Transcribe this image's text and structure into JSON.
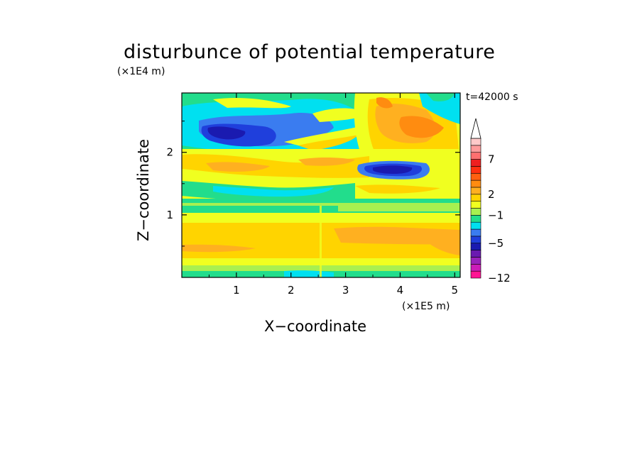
{
  "chart_data": {
    "type": "heatmap",
    "title": "disturbunce of potential temperature",
    "xlabel": "X−coordinate",
    "ylabel": "Z−coordinate",
    "x_unit": "(×1E5 m)",
    "y_unit": "(×1E4 m)",
    "time_label": "t=42000 s",
    "xlim": [
      0,
      5.1
    ],
    "ylim": [
      0,
      2.95
    ],
    "x_ticks": [
      1,
      2,
      3,
      4,
      5
    ],
    "y_ticks": [
      1,
      2
    ],
    "colorbar": {
      "levels": [
        -12,
        -10,
        -8,
        -7,
        -6,
        -5,
        -4,
        -3,
        -2,
        -1,
        0,
        1,
        2,
        3,
        4,
        5,
        6,
        7,
        8,
        9,
        10
      ],
      "colors": [
        "#ff1493",
        "#cc1cb8",
        "#9a22bb",
        "#6a1ab0",
        "#1a1ab0",
        "#1f3fdc",
        "#3a7cf0",
        "#00e0f0",
        "#22dd8c",
        "#a8f050",
        "#f0ff20",
        "#ffd400",
        "#ffb020",
        "#ff8c10",
        "#ff6010",
        "#ff3010",
        "#ee2020",
        "#ff6f6f",
        "#ff9c9c",
        "#ffcaca"
      ],
      "tick_labels": [
        {
          "value": 7,
          "label": "7"
        },
        {
          "value": 2,
          "label": "2"
        },
        {
          "value": -1,
          "label": "−1"
        },
        {
          "value": -5,
          "label": "−5"
        },
        {
          "value": -12,
          "label": "−12"
        }
      ],
      "extend": "max"
    },
    "features": [
      {
        "description": "cold anomaly band",
        "x": [
          0.4,
          2.6
        ],
        "z": [
          2.2,
          2.6
        ],
        "value": -5
      },
      {
        "description": "cold anomaly",
        "x": [
          3.3,
          4.3
        ],
        "z": [
          1.65,
          1.8
        ],
        "value": -5
      },
      {
        "description": "warm anomaly",
        "x": [
          3.6,
          4.9
        ],
        "z": [
          2.3,
          2.7
        ],
        "value": 3
      },
      {
        "description": "warm lower layer",
        "x": [
          0,
          5.1
        ],
        "z": [
          0.2,
          0.9
        ],
        "value": 1
      }
    ]
  }
}
